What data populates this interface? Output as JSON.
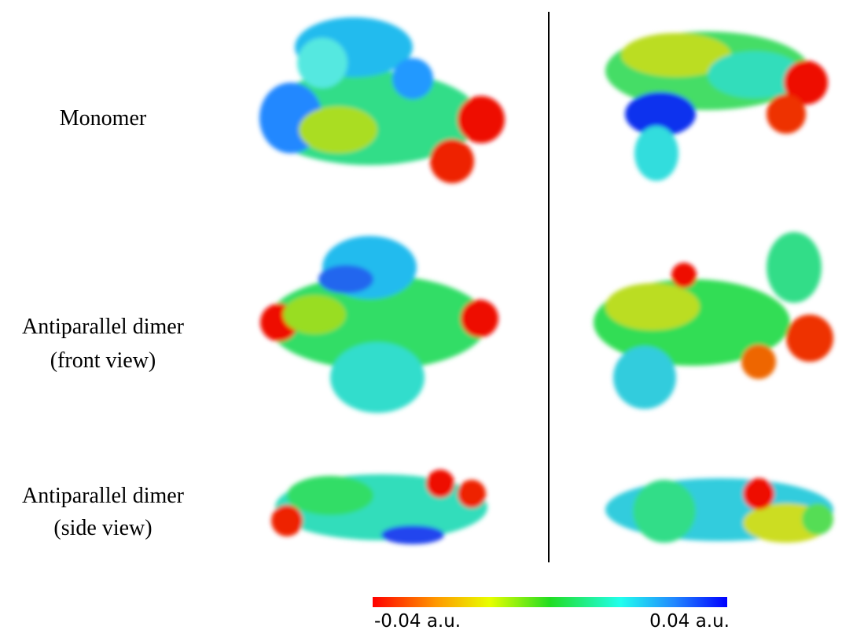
{
  "rows": [
    {
      "lines": [
        "Monomer"
      ]
    },
    {
      "lines": [
        "Antiparallel dimer",
        "(front view)"
      ]
    },
    {
      "lines": [
        "Antiparallel dimer",
        "(side view)"
      ]
    }
  ],
  "colorbar": {
    "min_label": "-0.04 a.u.",
    "max_label": "0.04 a.u."
  }
}
